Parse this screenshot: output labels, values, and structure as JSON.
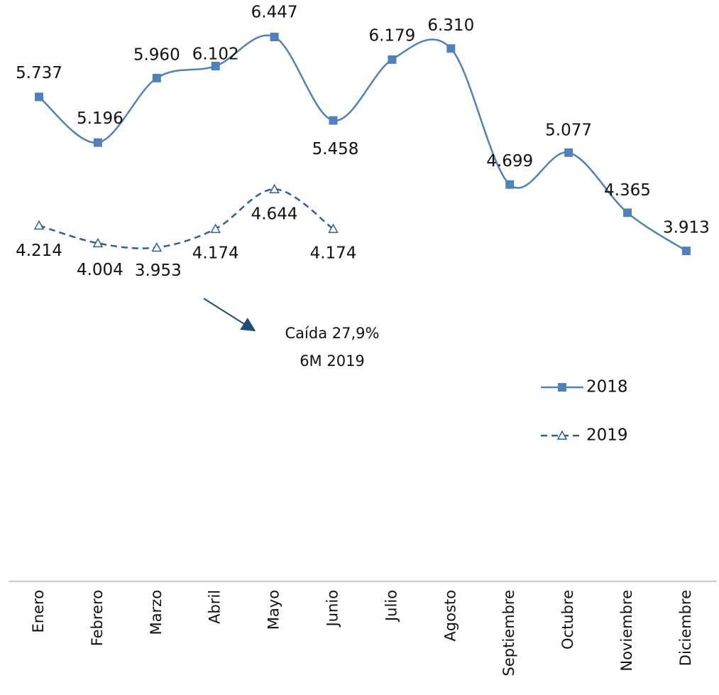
{
  "chart_data": {
    "type": "line",
    "categories": [
      "Enero",
      "Febrero",
      "Marzo",
      "Abril",
      "Mayo",
      "Junio",
      "Julio",
      "Agosto",
      "Septiembre",
      "Octubre",
      "Noviembre",
      "Diciembre"
    ],
    "series": [
      {
        "name": "2018",
        "color": "#4f81bd",
        "line_style": "solid",
        "marker": "square",
        "values": [
          5.737,
          5.196,
          5.96,
          6.102,
          6.447,
          5.458,
          6.179,
          6.31,
          4.699,
          5.077,
          4.365,
          3.913
        ],
        "value_labels": [
          "5.737",
          "5.196",
          "5.960",
          "6.102",
          "6.447",
          "5.458",
          "6.179",
          "6.310",
          "4.699",
          "5.077",
          "4.365",
          "3.913"
        ]
      },
      {
        "name": "2019",
        "color": "#2f5f98",
        "line_style": "dashed",
        "marker": "triangle",
        "values": [
          4.214,
          4.004,
          3.953,
          4.174,
          4.644,
          4.174,
          null,
          null,
          null,
          null,
          null,
          null
        ],
        "value_labels": [
          "4.214",
          "4.004",
          "3.953",
          "4.174",
          "4.644",
          "4.174",
          null,
          null,
          null,
          null,
          null,
          null
        ]
      }
    ],
    "annotations": [
      "Caída 27,9%",
      "6M 2019"
    ],
    "legend": "right"
  }
}
